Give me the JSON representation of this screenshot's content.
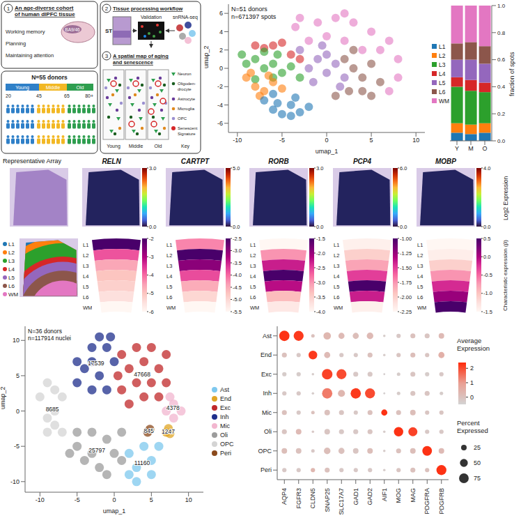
{
  "schematic": {
    "cohort_panel": {
      "number": "1",
      "title": "An age-diverse cohort of human dlPFC tissue",
      "region": "BA9/46",
      "functions": [
        "Working memory",
        "Planning",
        "Maintaining attention"
      ]
    },
    "donors": {
      "title": "N=55 donors",
      "groups": [
        "Young",
        "Middle",
        "Old"
      ],
      "group_colors": [
        "#2f80c8",
        "#f2b824",
        "#2e9e4f"
      ],
      "age_ticks": [
        "20",
        "45",
        "65",
        "80+"
      ]
    },
    "workflow_panel": {
      "number": "2",
      "title": "Tissue processing workflow",
      "steps": [
        "ST",
        "Validation",
        "snRNA-seq"
      ]
    },
    "map_panel": {
      "number": "3",
      "title": "A spatial map of aging and senescence",
      "columns": [
        "Young",
        "Middle",
        "Old",
        "Key"
      ],
      "key": [
        {
          "label": "Neuron",
          "color": "#2e9e4f"
        },
        {
          "label": "Oligoden-drocyte",
          "color": "#1b5e20"
        },
        {
          "label": "Astrocyte",
          "color": "#6a3d9a"
        },
        {
          "label": "Microglia",
          "color": "#e08a1e"
        },
        {
          "label": "OPC",
          "color": "#9a8fd0"
        },
        {
          "label": "Senescent Signature",
          "color": "#d62728"
        }
      ]
    }
  },
  "chart_data": [
    {
      "type": "scatter",
      "title": "N=51 donors",
      "subtitle": "n=671397 spots",
      "x_label": "umap_1",
      "y_label": "umap_2",
      "xlim": [
        -11,
        11
      ],
      "xticks": [
        -10,
        -5,
        0,
        5,
        10
      ],
      "ylim": [
        -7,
        7
      ],
      "yticks": [
        -6,
        -4,
        -2,
        0,
        2,
        4,
        6
      ],
      "series": [
        {
          "name": "WM",
          "color": "#e377c2",
          "x": [
            -3.5,
            -1,
            1,
            3,
            5,
            7,
            8,
            0,
            2,
            4,
            6,
            -2,
            8,
            7,
            -3,
            2
          ],
          "y": [
            4.5,
            5,
            5.5,
            5,
            4,
            3,
            1,
            3.5,
            3,
            2,
            2,
            3,
            -1,
            -2.5,
            5.5,
            6
          ]
        },
        {
          "name": "L6",
          "color": "#8c564b",
          "x": [
            2,
            3,
            4,
            3,
            5,
            2.5,
            4,
            6,
            1,
            5
          ],
          "y": [
            1,
            0,
            -1,
            2,
            0.5,
            -2.5,
            -2.5,
            -1.5,
            -3,
            -3
          ]
        },
        {
          "name": "L5",
          "color": "#9467bd",
          "x": [
            -2,
            -1,
            0,
            1,
            -1.5,
            0,
            2,
            -3,
            -0.5,
            1.5
          ],
          "y": [
            0,
            1,
            -0.5,
            0.5,
            -1.5,
            1.5,
            -1,
            2,
            2.5,
            -2
          ]
        },
        {
          "name": "L4",
          "color": "#d62728",
          "x": [
            -7,
            -6,
            -4,
            -5,
            -3,
            -8
          ],
          "y": [
            2.2,
            2.5,
            1.5,
            2.8,
            1,
            2.5
          ]
        },
        {
          "name": "L3",
          "color": "#2ca02c",
          "x": [
            -9,
            -8,
            -7,
            -6,
            -5,
            -8,
            -4,
            -9.5,
            -7,
            -5.5,
            -3,
            -6
          ],
          "y": [
            0.5,
            1,
            0,
            0.5,
            -0.5,
            -1.2,
            0.2,
            1.5,
            1.8,
            1.5,
            -1,
            -1
          ]
        },
        {
          "name": "L2",
          "color": "#ff7f0e",
          "x": [
            -8,
            -7,
            -6,
            -9,
            -5,
            -7.5,
            -8.5,
            -6.5
          ],
          "y": [
            -2,
            -2.5,
            -1.5,
            -1,
            -2.2,
            -3,
            -0.5,
            -0.8
          ]
        },
        {
          "name": "L1",
          "color": "#1f77b4",
          "x": [
            -6,
            -5,
            -4,
            -3,
            -5.5,
            -4,
            -2,
            -7,
            -3.5,
            -6
          ],
          "y": [
            -4.5,
            -5,
            -5.2,
            -4.8,
            -3.8,
            -4,
            -4.2,
            -3.5,
            -3.2,
            -2.8
          ]
        }
      ]
    },
    {
      "type": "bar",
      "stacked": true,
      "categories": [
        "Y",
        "M",
        "O"
      ],
      "y_label": "fraction of spots",
      "legend": "left",
      "ylim": [
        0,
        1
      ],
      "yticks": [
        {
          "value": 0,
          "label": "0.0"
        },
        0.2,
        0.4,
        0.6,
        0.8,
        {
          "value": 1,
          "label": "1.0"
        }
      ],
      "series": [
        {
          "name": "L1",
          "color": "#1f77b4",
          "values": [
            0.06,
            0.05,
            0.06
          ]
        },
        {
          "name": "L2",
          "color": "#ff7f0e",
          "values": [
            0.07,
            0.07,
            0.07
          ]
        },
        {
          "name": "L3",
          "color": "#2ca02c",
          "values": [
            0.27,
            0.25,
            0.23
          ]
        },
        {
          "name": "L4",
          "color": "#d62728",
          "values": [
            0.07,
            0.08,
            0.07
          ]
        },
        {
          "name": "L5",
          "color": "#9467bd",
          "values": [
            0.13,
            0.15,
            0.14
          ]
        },
        {
          "name": "L6",
          "color": "#8c564b",
          "values": [
            0.12,
            0.13,
            0.13
          ]
        },
        {
          "name": "WM",
          "color": "#e377c2",
          "values": [
            0.28,
            0.27,
            0.3
          ]
        }
      ]
    },
    {
      "type": "scatter",
      "title": "N=36 donors",
      "subtitle": "n=117914 nuclei",
      "x_label": "umap_1",
      "y_label": "umap_2",
      "legend": "right",
      "xlim": [
        -12,
        12
      ],
      "xticks": [
        -10,
        -5,
        0,
        5,
        10
      ],
      "ylim": [
        -11.5,
        12
      ],
      "yticks": [
        -10,
        -5,
        0,
        5,
        10
      ],
      "series": [
        {
          "name": "Ast",
          "color": "#7ec8ee",
          "count": 11160,
          "x": [
            2,
            3,
            4,
            5,
            6,
            3,
            5,
            2
          ],
          "y": [
            -6,
            -8,
            -5,
            -7,
            -5,
            -10,
            -9,
            -9
          ]
        },
        {
          "name": "End",
          "color": "#e0a526",
          "count": 1247,
          "x": [
            7,
            7.3,
            7.5
          ],
          "y": [
            -3,
            -2.5,
            -3.2
          ]
        },
        {
          "name": "Exc",
          "color": "#c0282a",
          "count": 47668,
          "x": [
            1,
            2,
            3,
            4,
            5,
            6,
            7,
            2,
            4,
            6,
            3,
            5,
            7,
            1,
            0.5
          ],
          "y": [
            3,
            6,
            9,
            7,
            4,
            6,
            8,
            1,
            2,
            2,
            4,
            9,
            4,
            8,
            5
          ]
        },
        {
          "name": "Inh",
          "color": "#1f2f8c",
          "count": 17539,
          "x": [
            -3,
            -2,
            -1,
            -0.5,
            -4,
            -2,
            -1,
            -3,
            -5,
            -3,
            0,
            -5
          ],
          "y": [
            9,
            10.5,
            9,
            10.5,
            6,
            5,
            3,
            3,
            4,
            7,
            7,
            7
          ]
        },
        {
          "name": "Mic",
          "color": "#f2b6cf",
          "count": 4378,
          "x": [
            7,
            8,
            8,
            9,
            7.5
          ],
          "y": [
            0,
            1,
            -1,
            0,
            2
          ]
        },
        {
          "name": "Oli",
          "color": "#9c9c9c",
          "count": 25797,
          "x": [
            -5,
            -3,
            -1,
            1,
            -4,
            -2,
            0,
            -3,
            -1,
            -5,
            1,
            -6
          ],
          "y": [
            -5,
            -3,
            -4,
            -3,
            -7,
            -8,
            -6,
            -6,
            -9,
            -3,
            -7,
            -6
          ]
        },
        {
          "name": "OPC",
          "color": "#d4d4d4",
          "count": 8685,
          "x": [
            -10,
            -9,
            -8,
            -9,
            -8,
            -7,
            -9,
            -7,
            -8
          ],
          "y": [
            2,
            4,
            3,
            -1,
            0,
            -3,
            -3,
            2,
            -2
          ]
        },
        {
          "name": "Peri",
          "color": "#8b4a1c",
          "count": 845,
          "x": [
            4.5,
            4.8
          ],
          "y": [
            -3,
            -2.6
          ]
        }
      ]
    },
    {
      "type": "dot",
      "categories": [
        "AQP4",
        "FGFR3",
        "CLDN5",
        "SNAP25",
        "SLC17A7",
        "GAD1",
        "GAD2",
        "AIF1",
        "MOG",
        "MAG",
        "PDGFRA",
        "PDGFRB"
      ],
      "y_categories": [
        "Ast",
        "End",
        "Exc",
        "Inh",
        "Mic",
        "Oli",
        "OPC",
        "Peri"
      ],
      "avg_expression": [
        [
          2.3,
          2.2,
          0,
          0.3,
          0.2,
          0.1,
          0.2,
          -0.3,
          -0.2,
          0,
          -0.1,
          0.2
        ],
        [
          0,
          -0.2,
          2.2,
          0.2,
          -0.2,
          -0.2,
          0,
          -0.3,
          -0.1,
          0.1,
          -0.1,
          0.5
        ],
        [
          -0.3,
          -0.3,
          -0.3,
          2.1,
          2.0,
          -0.2,
          -0.2,
          -0.4,
          -0.3,
          -0.1,
          -0.3,
          -0.2
        ],
        [
          -0.2,
          -0.2,
          -0.3,
          1.4,
          0.3,
          2.2,
          2.0,
          -0.4,
          -0.3,
          -0.1,
          -0.1,
          -0.3
        ],
        [
          0,
          -0.2,
          0,
          0,
          -0.1,
          -0.2,
          0,
          2.3,
          0,
          0.1,
          -0.1,
          -0.1
        ],
        [
          -0.1,
          0.2,
          -0.2,
          -0.1,
          -0.2,
          -0.2,
          -0.1,
          -0.3,
          2.3,
          2.1,
          -0.2,
          -0.2
        ],
        [
          0.1,
          0,
          -0.2,
          0.1,
          0,
          -0.1,
          0.1,
          -0.3,
          0,
          0.1,
          2.3,
          0.2
        ],
        [
          -0.2,
          -0.2,
          0.3,
          0,
          -0.2,
          -0.2,
          -0.2,
          -0.3,
          -0.1,
          0,
          0,
          2.3
        ]
      ],
      "percent_expressed": [
        [
          85,
          80,
          10,
          45,
          30,
          30,
          35,
          5,
          15,
          20,
          20,
          25
        ],
        [
          20,
          15,
          60,
          30,
          15,
          15,
          20,
          5,
          15,
          20,
          15,
          30
        ],
        [
          15,
          15,
          5,
          90,
          80,
          20,
          20,
          3,
          10,
          20,
          15,
          15
        ],
        [
          15,
          15,
          5,
          85,
          40,
          85,
          80,
          3,
          10,
          20,
          20,
          10
        ],
        [
          20,
          15,
          10,
          25,
          20,
          15,
          20,
          30,
          20,
          25,
          15,
          15
        ],
        [
          20,
          25,
          5,
          25,
          20,
          20,
          20,
          5,
          70,
          65,
          15,
          15
        ],
        [
          25,
          25,
          10,
          35,
          30,
          25,
          25,
          5,
          20,
          25,
          75,
          25
        ],
        [
          15,
          15,
          15,
          20,
          15,
          15,
          15,
          5,
          15,
          20,
          15,
          80
        ]
      ],
      "color_label": "Average Expression",
      "color_range": [
        -0.5,
        2.4
      ],
      "color_ticks": [
        0,
        1,
        2
      ],
      "size_label": "Percent Expressed",
      "size_ticks": [
        25,
        50,
        75
      ]
    }
  ],
  "spatial": {
    "array_title": "Representative Array",
    "expression_label": "Log2 Expression",
    "beta_label": "Characteristic expression (β)",
    "layers": [
      {
        "name": "L1",
        "color": "#1f77b4"
      },
      {
        "name": "L2",
        "color": "#ff7f0e"
      },
      {
        "name": "L3",
        "color": "#2ca02c"
      },
      {
        "name": "L4",
        "color": "#d62728"
      },
      {
        "name": "L5",
        "color": "#9467bd"
      },
      {
        "name": "L6",
        "color": "#8c564b"
      },
      {
        "name": "WM",
        "color": "#e377c2"
      }
    ],
    "genes": [
      {
        "name": "RELN",
        "expression_colorbar": {
          "range": [
            0,
            3
          ],
          "ticks": [
            {
              "value": 0,
              "label": "0.0"
            },
            {
              "value": 3,
              "label": "3.0"
            }
          ]
        },
        "beta_colorbar": {
          "range": [
            -6,
            -2
          ],
          "ticks": [
            -2,
            -3,
            -4,
            -5,
            -6
          ]
        },
        "beta": [
          -2,
          -3.8,
          -4.6,
          -5,
          -5.2,
          -5.5,
          -6
        ]
      },
      {
        "name": "CARTPT",
        "expression_colorbar": {
          "range": [
            0,
            5
          ],
          "ticks": [
            {
              "value": 0,
              "label": "0.0"
            },
            {
              "value": 5,
              "label": "5.0"
            }
          ]
        },
        "beta_colorbar": {
          "range": [
            -5.5,
            -2.5
          ],
          "ticks": [
            -2.5,
            {
              "value": -3,
              "label": "-3.0"
            },
            -3.5,
            {
              "value": -4,
              "label": "-4.0"
            },
            -4.5,
            {
              "value": -5,
              "label": "-5.0"
            },
            -5.5
          ]
        },
        "beta": [
          -4.2,
          -2.5,
          -3,
          -3.8,
          -4.5,
          -5,
          -5.5
        ]
      },
      {
        "name": "RORB",
        "expression_colorbar": {
          "range": [
            0,
            3
          ],
          "ticks": [
            {
              "value": 0,
              "label": "0.0"
            },
            {
              "value": 3,
              "label": "3.0"
            }
          ]
        },
        "beta_colorbar": {
          "range": [
            -4,
            -1.5
          ],
          "ticks": [
            -1.5,
            {
              "value": -2,
              "label": "-2.0"
            },
            -2.5,
            {
              "value": -3,
              "label": "-3.0"
            },
            -3.5,
            {
              "value": -4,
              "label": "-4.0"
            }
          ]
        },
        "beta": [
          -4,
          -3,
          -2.3,
          -1.5,
          -2.2,
          -3.3,
          -3.8
        ]
      },
      {
        "name": "PCP4",
        "expression_colorbar": {
          "range": [
            0,
            6
          ],
          "ticks": [
            {
              "value": 0,
              "label": "0.0"
            },
            {
              "value": 6,
              "label": "6.0"
            }
          ]
        },
        "beta_colorbar": {
          "range": [
            -2.25,
            -1
          ],
          "ticks": [
            {
              "value": -1,
              "label": "-1.00"
            },
            -1.25,
            {
              "value": -1.5,
              "label": "-1.50"
            },
            -1.75,
            {
              "value": -2,
              "label": "-2.00"
            },
            -2.25
          ]
        },
        "beta": [
          -2.2,
          -2,
          -1.8,
          -1.5,
          -1,
          -1.4,
          -2.2
        ]
      },
      {
        "name": "MOBP",
        "expression_colorbar": {
          "range": [
            0,
            4
          ],
          "ticks": [
            {
              "value": 0,
              "label": "0.0"
            },
            {
              "value": 4,
              "label": "4.0"
            }
          ]
        },
        "beta_colorbar": {
          "range": [
            -1.5,
            0.5
          ],
          "ticks": [
            0.5,
            {
              "value": 0,
              "label": "0.0"
            },
            -0.5,
            {
              "value": -1,
              "label": "-1.0"
            },
            -1.5
          ]
        },
        "beta": [
          -1.5,
          -1.4,
          -1.1,
          -0.7,
          -0.2,
          0.1,
          0.5
        ]
      }
    ]
  }
}
